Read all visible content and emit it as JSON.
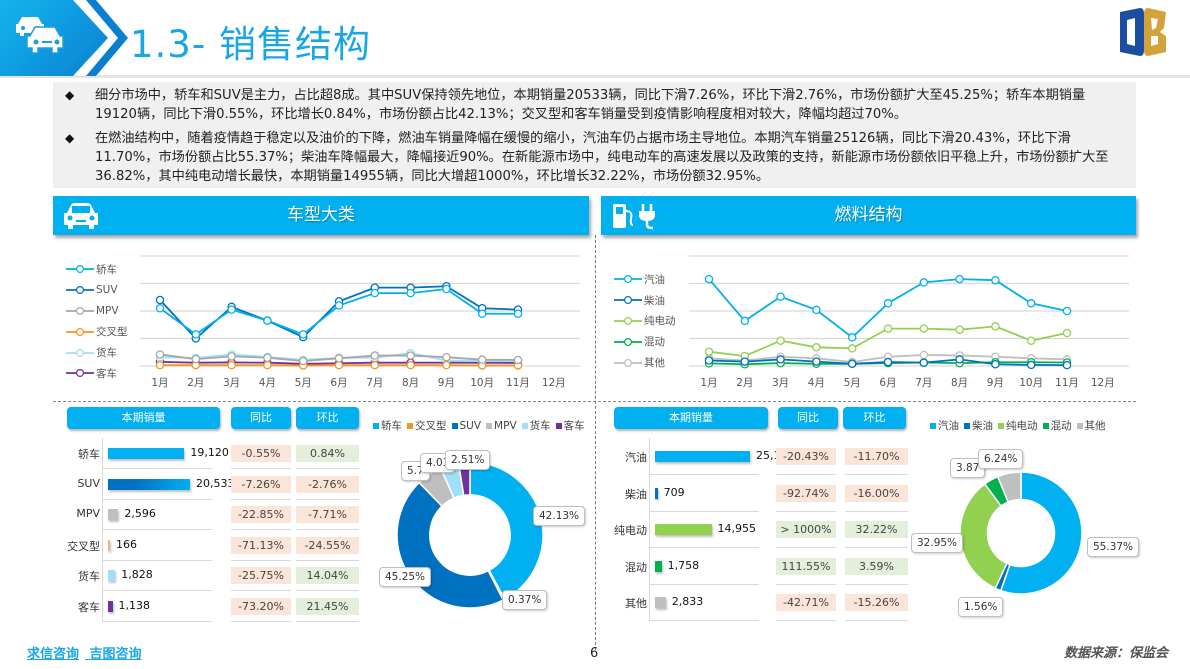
{
  "header": {
    "title": "1.3- 销售结构",
    "icon": "cars-icon",
    "logo": "brand-logo"
  },
  "summary": {
    "bullets": [
      "细分市场中，轿车和SUV是主力，占比超8成。其中SUV保持领先地位，本期销量20533辆，同比下滑7.26%，环比下滑2.76%，市场份额扩大至45.25%；轿车本期销量19120辆，同比下滑0.55%，环比增长0.84%，市场份额占比42.13%；交叉型和客车销量受到疫情影响程度相对较大，降幅均超过70%。",
      "在燃油结构中，随着疫情趋于稳定以及油价的下降，燃油车销量降幅在缓慢的缩小，汽油车仍占据市场主导地位。本期汽车销量25126辆，同比下滑20.43%，环比下滑11.70%，市场份额占比55.37%；柴油车降幅最大，降幅接近90%。在新能源市场中，纯电动车的高速发展以及政策的支持，新能源市场份额依旧平稳上升，市场份额扩大至36.82%，其中纯电动增长最快，本期销量14955辆，同比大增超1000%，环比增长32.22%，市场份额32.95%。"
    ]
  },
  "left_section": {
    "title": "车型大类",
    "icon": "car-front-icon",
    "table_headers": {
      "sales": "本期销量",
      "yoy": "同比",
      "mom": "环比"
    },
    "rows": [
      {
        "label": "轿车",
        "value": "19,120",
        "yoy": "-0.55%",
        "mom": "0.84%",
        "color": "#00b0f0",
        "yoy_pos": false,
        "mom_pos": true
      },
      {
        "label": "SUV",
        "value": "20,533",
        "yoy": "-7.26%",
        "mom": "-2.76%",
        "color": "#0070c0",
        "yoy_pos": false,
        "mom_pos": false
      },
      {
        "label": "MPV",
        "value": "2,596",
        "yoy": "-22.85%",
        "mom": "-7.71%",
        "color": "#bfbfbf",
        "yoy_pos": false,
        "mom_pos": false
      },
      {
        "label": "交叉型",
        "value": "166",
        "yoy": "-71.13%",
        "mom": "-24.55%",
        "color": "#f4b183",
        "yoy_pos": false,
        "mom_pos": false
      },
      {
        "label": "货车",
        "value": "1,828",
        "yoy": "-25.75%",
        "mom": "14.04%",
        "color": "#9de0f7",
        "yoy_pos": false,
        "mom_pos": true
      },
      {
        "label": "客车",
        "value": "1,138",
        "yoy": "-73.20%",
        "mom": "21.45%",
        "color": "#7030a0",
        "yoy_pos": false,
        "mom_pos": true
      }
    ],
    "donut_legend": [
      {
        "label": "轿车",
        "color": "#00b0f0"
      },
      {
        "label": "交叉型",
        "color": "#f7941d"
      },
      {
        "label": "SUV",
        "color": "#0070c0"
      },
      {
        "label": "MPV",
        "color": "#bfbfbf"
      },
      {
        "label": "货车",
        "color": "#9de0f7"
      },
      {
        "label": "客车",
        "color": "#7030a0"
      }
    ],
    "donut_labels": {
      "jiaoche": "42.13%",
      "jiaochaxing": "0.37%",
      "suv": "45.25%",
      "mpv": "5.72%",
      "huoche": "4.03%",
      "keche": "2.51%"
    },
    "donut_labels_visible": {
      "mpv": "5.7",
      "huoche": "4.03"
    }
  },
  "right_section": {
    "title": "燃料结构",
    "icon": "fuel-pump-plug-icon",
    "table_headers": {
      "sales": "本期销量",
      "yoy": "同比",
      "mom": "环比"
    },
    "rows": [
      {
        "label": "汽油",
        "value": "25,126",
        "yoy": "-20.43%",
        "mom": "-11.70%",
        "color": "#00b0f0",
        "yoy_pos": false,
        "mom_pos": false
      },
      {
        "label": "柴油",
        "value": "709",
        "yoy": "-92.74%",
        "mom": "-16.00%",
        "color": "#0070c0",
        "yoy_pos": false,
        "mom_pos": false
      },
      {
        "label": "纯电动",
        "value": "14,955",
        "yoy": "> 1000%",
        "mom": "32.22%",
        "color": "#92d050",
        "yoy_pos": true,
        "mom_pos": true
      },
      {
        "label": "混动",
        "value": "1,758",
        "yoy": "111.55%",
        "mom": "3.59%",
        "color": "#00b050",
        "yoy_pos": true,
        "mom_pos": true
      },
      {
        "label": "其他",
        "value": "2,833",
        "yoy": "-42.71%",
        "mom": "-15.26%",
        "color": "#bfbfbf",
        "yoy_pos": false,
        "mom_pos": false
      }
    ],
    "donut_legend": [
      {
        "label": "汽油",
        "color": "#00b0f0"
      },
      {
        "label": "柴油",
        "color": "#0070c0"
      },
      {
        "label": "纯电动",
        "color": "#92d050"
      },
      {
        "label": "混动",
        "color": "#00b050"
      },
      {
        "label": "其他",
        "color": "#bfbfbf"
      }
    ],
    "donut_labels": {
      "qiyou": "55.37%",
      "chaiyou": "1.56%",
      "chundiandong": "32.95%",
      "hundong": "3.87%",
      "qita": "6.24%"
    },
    "donut_labels_visible": {
      "hundong": "3.87"
    }
  },
  "footer": {
    "links": [
      "求信咨询",
      "吉图咨询"
    ],
    "page": "6",
    "source": "数据来源：保监会"
  },
  "chart_data": [
    {
      "type": "line",
      "title": "车型大类月度销量",
      "categories": [
        "1月",
        "2月",
        "3月",
        "4月",
        "5月",
        "6月",
        "7月",
        "8月",
        "9月",
        "10月",
        "11月",
        "12月"
      ],
      "ylim": [
        0,
        40
      ],
      "grid": true,
      "legend_position": "left",
      "series": [
        {
          "name": "轿车",
          "color": "#00b0f0",
          "values": [
            21,
            11.5,
            20.5,
            16.5,
            11.5,
            22,
            26.5,
            26.5,
            28,
            19,
            19,
            null
          ]
        },
        {
          "name": "SUV",
          "color": "#0070c0",
          "values": [
            24,
            10,
            21.5,
            16.5,
            10.5,
            23.5,
            28.5,
            28.5,
            29,
            21,
            20.5,
            null
          ]
        },
        {
          "name": "MPV",
          "color": "#a6a6a6",
          "values": [
            4.2,
            2.5,
            3.5,
            3,
            1.8,
            2.8,
            3.8,
            3.8,
            3.2,
            2.3,
            2.2,
            null
          ]
        },
        {
          "name": "交叉型",
          "color": "#f7941d",
          "values": [
            0.3,
            0.3,
            0.3,
            0.3,
            0.2,
            0.3,
            0.3,
            0.3,
            0.3,
            0.2,
            0.2,
            null
          ]
        },
        {
          "name": "货车",
          "color": "#9de0f7",
          "values": [
            3.2,
            2.9,
            4.2,
            3.3,
            2.2,
            3,
            3,
            4.7,
            2,
            1.8,
            1.8,
            null
          ]
        },
        {
          "name": "客车",
          "color": "#7030a0",
          "values": [
            1.5,
            1.2,
            1.3,
            1.2,
            0.8,
            1,
            1.2,
            1.2,
            1.2,
            1.2,
            1.1,
            null
          ]
        }
      ]
    },
    {
      "type": "line",
      "title": "燃料结构月度销量",
      "categories": [
        "1月",
        "2月",
        "3月",
        "4月",
        "5月",
        "6月",
        "7月",
        "8月",
        "9月",
        "10月",
        "11月",
        "12月"
      ],
      "ylim": [
        0,
        50
      ],
      "grid": true,
      "legend_position": "left",
      "series": [
        {
          "name": "汽油",
          "color": "#00b0f0",
          "values": [
            39.5,
            20.5,
            31.5,
            25.5,
            13,
            28.5,
            38,
            39.5,
            39,
            28.5,
            25,
            null
          ]
        },
        {
          "name": "柴油",
          "color": "#0070c0",
          "values": [
            2.5,
            2,
            3,
            2,
            1,
            1.8,
            1.5,
            3,
            0.8,
            0.5,
            0.4,
            null
          ]
        },
        {
          "name": "纯电动",
          "color": "#92d050",
          "values": [
            6.5,
            4.5,
            11.5,
            8.5,
            8,
            17,
            17,
            16.5,
            18,
            11.5,
            15,
            null
          ]
        },
        {
          "name": "混动",
          "color": "#00b050",
          "values": [
            1.2,
            0.8,
            1.3,
            1,
            1,
            1.3,
            1.6,
            1.3,
            1.7,
            1.7,
            1.6,
            null
          ]
        },
        {
          "name": "其他",
          "color": "#bfbfbf",
          "values": [
            3.5,
            2.5,
            4.2,
            3.5,
            1.8,
            4.2,
            5,
            4.8,
            4.2,
            3.5,
            3,
            null
          ]
        }
      ]
    },
    {
      "type": "bar",
      "title": "车型大类本期销量",
      "categories": [
        "轿车",
        "SUV",
        "MPV",
        "交叉型",
        "货车",
        "客车"
      ],
      "values": [
        19120,
        20533,
        2596,
        166,
        1828,
        1138
      ],
      "yoy": [
        "-0.55%",
        "-7.26%",
        "-22.85%",
        "-71.13%",
        "-25.75%",
        "-73.20%"
      ],
      "mom": [
        "0.84%",
        "-2.76%",
        "-7.71%",
        "-24.55%",
        "14.04%",
        "21.45%"
      ]
    },
    {
      "type": "pie",
      "title": "车型大类市场份额",
      "categories": [
        "轿车",
        "交叉型",
        "SUV",
        "MPV",
        "货车",
        "客车"
      ],
      "values": [
        42.13,
        0.37,
        45.25,
        5.72,
        4.03,
        2.51
      ]
    },
    {
      "type": "bar",
      "title": "燃料结构本期销量",
      "categories": [
        "汽油",
        "柴油",
        "纯电动",
        "混动",
        "其他"
      ],
      "values": [
        25126,
        709,
        14955,
        1758,
        2833
      ],
      "yoy": [
        "-20.43%",
        "-92.74%",
        "> 1000%",
        "111.55%",
        "-42.71%"
      ],
      "mom": [
        "-11.70%",
        "-16.00%",
        "32.22%",
        "3.59%",
        "-15.26%"
      ]
    },
    {
      "type": "pie",
      "title": "燃料结构市场份额",
      "categories": [
        "汽油",
        "柴油",
        "纯电动",
        "混动",
        "其他"
      ],
      "values": [
        55.37,
        1.56,
        32.95,
        3.87,
        6.24
      ]
    }
  ]
}
